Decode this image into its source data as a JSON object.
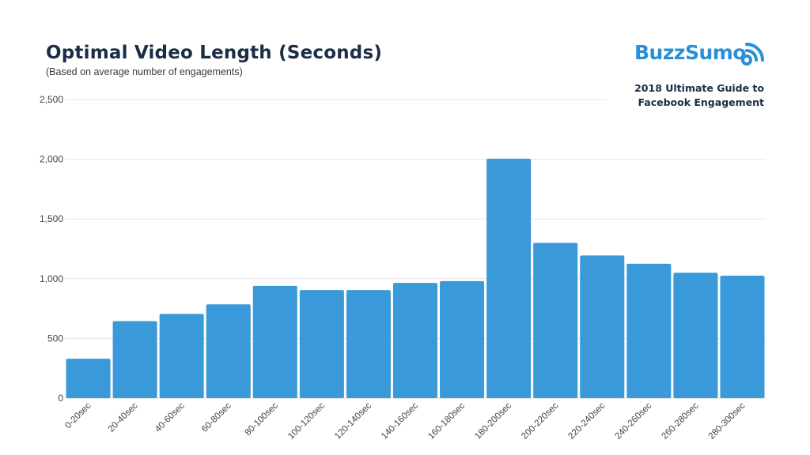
{
  "header": {
    "title": "Optimal Video Length (Seconds)",
    "subtitle": "(Based on average number of engagements)"
  },
  "brand": {
    "logo_text": "BuzzSumo",
    "logo_icon": "signal-waves-icon",
    "guide_line1": "2018 Ultimate Guide to",
    "guide_line2": "Facebook Engagement",
    "color": "#2a8fd6"
  },
  "chart_data": {
    "type": "bar",
    "title": "Optimal Video Length (Seconds)",
    "subtitle": "(Based on average number of engagements)",
    "categories": [
      "0-20sec",
      "20-40sec",
      "40-60sec",
      "60-80sec",
      "80-100sec",
      "100-120sec",
      "120-140sec",
      "140-160sec",
      "160-180sec",
      "180-200sec",
      "200-220sec",
      "220-240sec",
      "240-260sec",
      "260-280sec",
      "280-300sec"
    ],
    "values": [
      330,
      645,
      705,
      785,
      940,
      905,
      905,
      965,
      980,
      2005,
      1300,
      1195,
      1125,
      1050,
      1025
    ],
    "ylim": [
      0,
      2500
    ],
    "yticks": [
      0,
      500,
      1000,
      1500,
      2000,
      2500
    ],
    "ytick_labels": [
      "0",
      "500",
      "1,000",
      "1,500",
      "2,000",
      "2,500"
    ],
    "bar_color": "#3a9ad9",
    "grid": true,
    "legend": "none"
  }
}
